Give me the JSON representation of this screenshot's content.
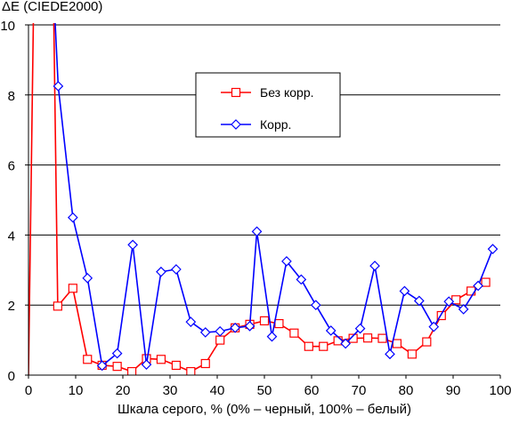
{
  "chart_data": {
    "type": "line",
    "ylabel": "ΔE (CIEDE2000)",
    "xlabel": "Шкала серого, % (0% – черный, 100% – белый)",
    "xlim": [
      0,
      100
    ],
    "ylim": [
      0,
      10
    ],
    "x_ticks": [
      0,
      10,
      20,
      30,
      40,
      50,
      60,
      70,
      80,
      90,
      100
    ],
    "y_ticks": [
      0,
      2,
      4,
      6,
      8,
      10
    ],
    "grid": "horizontal",
    "legend_position": "upper-center box",
    "series": [
      {
        "name": "Без корр.",
        "color": "#ff0000",
        "marker": "square",
        "x": [
          0,
          1.1,
          3.1,
          5.3,
          6.2,
          9.4,
          12.5,
          15.6,
          18.8,
          21.9,
          25.0,
          28.1,
          31.3,
          34.4,
          37.5,
          40.6,
          43.8,
          46.9,
          50.0,
          53.1,
          56.3,
          59.4,
          62.5,
          65.6,
          68.8,
          71.9,
          75.0,
          78.1,
          81.3,
          84.4,
          87.5,
          90.6,
          93.8,
          96.9,
          100
        ],
        "y": [
          0,
          10,
          10,
          10,
          1.97,
          2.48,
          0.45,
          0.28,
          0.25,
          0.1,
          0.47,
          0.45,
          0.28,
          0.1,
          0.33,
          1.0,
          1.35,
          1.45,
          1.55,
          1.47,
          1.2,
          0.82,
          0.82,
          0.98,
          1.05,
          1.06,
          1.05,
          0.9,
          0.6,
          0.95,
          1.7,
          2.15,
          2.4,
          2.65,
          null
        ],
        "markers_from_index": 4
      },
      {
        "name": "Корр.",
        "color": "#0000ff",
        "marker": "diamond",
        "x": [
          5.4,
          6.3,
          9.4,
          12.5,
          15.6,
          18.8,
          22.1,
          25.0,
          28.1,
          31.3,
          34.4,
          37.5,
          40.6,
          43.8,
          46.9,
          48.4,
          51.6,
          54.7,
          57.8,
          60.9,
          64.1,
          67.2,
          70.3,
          73.4,
          76.6,
          79.7,
          82.8,
          85.9,
          89.1,
          92.2,
          95.3,
          98.4,
          100
        ],
        "y": [
          10,
          8.25,
          4.5,
          2.77,
          0.27,
          0.62,
          3.72,
          0.3,
          2.95,
          3.02,
          1.52,
          1.22,
          1.25,
          1.35,
          1.4,
          4.1,
          1.1,
          3.25,
          2.73,
          2.0,
          1.27,
          0.9,
          1.33,
          3.12,
          0.6,
          2.4,
          2.12,
          1.38,
          2.1,
          1.88,
          2.55,
          3.6,
          null
        ],
        "markers_from_index": 1
      }
    ]
  }
}
